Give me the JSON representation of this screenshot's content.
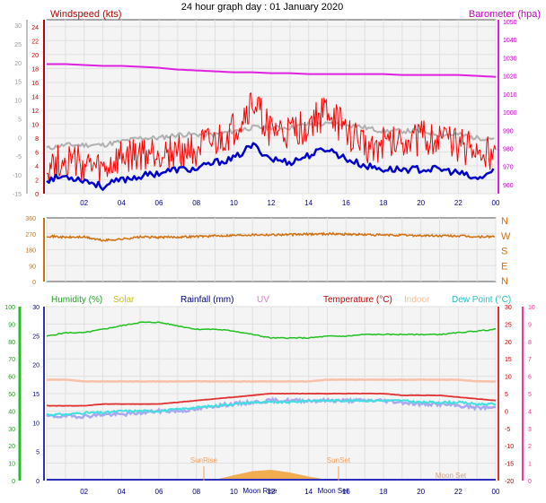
{
  "title": "24 hour graph day : 01 January 2020",
  "x_ticks": [
    "02",
    "04",
    "06",
    "08",
    "10",
    "12",
    "14",
    "16",
    "18",
    "20",
    "22",
    "00"
  ],
  "colors": {
    "wind_avg": "#0000cc",
    "wind_gust": "#ff0000",
    "wind_max": "#b0b0b0",
    "barometer": "#e020e0",
    "direction": "#d07010",
    "humidity": "#20c020",
    "solar": "#f0a030",
    "temperature": "#e03030",
    "indoor": "#f8c0a8",
    "dewpoint": "#40e0e0",
    "rain": "#3030c0",
    "uv_axis": "#ff3399",
    "axis": "#404040",
    "grid": "#e0e0e0"
  },
  "chart_data": [
    {
      "type": "line",
      "panel": "wind-barometer",
      "left_label": "Windspeed (kts)",
      "right_label": "Barometer (hpa)",
      "left_ticks": [
        "24",
        "22",
        "20",
        "18",
        "16",
        "14",
        "12",
        "10",
        "8",
        "6",
        "4",
        "2",
        "0"
      ],
      "right_ticks": [
        "1050",
        "1040",
        "1030",
        "1020",
        "1010",
        "1000",
        "990",
        "980",
        "970",
        "960"
      ],
      "outer_left_ticks": [
        "30",
        "25",
        "20",
        "15",
        "10",
        "5",
        "0",
        "-5",
        "-10",
        "-15"
      ],
      "ylim_left": [
        0,
        25
      ],
      "ylim_right": [
        955,
        1051
      ],
      "x": [
        0,
        1,
        2,
        3,
        4,
        5,
        6,
        7,
        8,
        9,
        10,
        11,
        12,
        13,
        14,
        15,
        16,
        17,
        18,
        19,
        20,
        21,
        22,
        23,
        24
      ],
      "series": [
        {
          "name": "Barometer (hpa)",
          "axis": "right",
          "color_key": "barometer",
          "values": [
            1026.5,
            1026.5,
            1026,
            1025.5,
            1025.5,
            1025,
            1024.5,
            1023.5,
            1023,
            1022.5,
            1022,
            1022,
            1021.5,
            1021.5,
            1021,
            1021,
            1021,
            1021,
            1021,
            1020.5,
            1020.5,
            1020.5,
            1020.5,
            1020,
            1019.5
          ]
        },
        {
          "name": "",
          "axis": "left",
          "color_key": "wind_max",
          "values": [
            6.5,
            7,
            7,
            7,
            7.5,
            8,
            8,
            8.5,
            8.5,
            8.5,
            9,
            9.5,
            9.5,
            9.5,
            10,
            10,
            10,
            9.5,
            9,
            9,
            9,
            8.5,
            8.5,
            8,
            8
          ]
        },
        {
          "name": "",
          "axis": "left",
          "color_key": "wind_gust",
          "values": [
            4,
            5,
            4,
            3,
            5,
            5.5,
            6,
            6,
            6.5,
            7,
            9,
            13,
            9,
            8.5,
            10,
            12,
            9,
            7,
            7,
            8,
            8,
            8,
            7,
            6,
            5.5
          ]
        },
        {
          "name": "",
          "axis": "left",
          "color_key": "wind_avg",
          "values": [
            2,
            2.5,
            2,
            1,
            2,
            2.5,
            3,
            3.5,
            3.5,
            4.5,
            5,
            7,
            5,
            4.5,
            5.5,
            6.5,
            5,
            4,
            3.5,
            3.5,
            3.5,
            3.5,
            3,
            2,
            3.5
          ]
        }
      ]
    },
    {
      "type": "scatter",
      "panel": "wind-direction",
      "left_ticks": [
        "360",
        "270",
        "180",
        "90",
        "0"
      ],
      "right_ticks": [
        "N",
        "W",
        "S",
        "E",
        "N"
      ],
      "ylim": [
        0,
        360
      ],
      "x": [
        0,
        1,
        2,
        3,
        4,
        5,
        6,
        7,
        8,
        9,
        10,
        11,
        12,
        13,
        14,
        15,
        16,
        17,
        18,
        19,
        20,
        21,
        22,
        23,
        24
      ],
      "series": [
        {
          "name": "",
          "color_key": "direction",
          "values": [
            258,
            250,
            252,
            232,
            240,
            252,
            250,
            252,
            255,
            258,
            262,
            265,
            265,
            265,
            268,
            270,
            268,
            265,
            262,
            262,
            260,
            258,
            258,
            252,
            255
          ]
        }
      ]
    },
    {
      "type": "line",
      "panel": "weather",
      "legend": [
        "Humidity (%)",
        "Solar",
        "Rainfall (mm)",
        "UV",
        "Temperature (°C)",
        "Indoor",
        "Dew Point (°C)"
      ],
      "humidity_ticks": [
        "100",
        "90",
        "80",
        "70",
        "60",
        "50",
        "40",
        "30",
        "20",
        "10",
        "0"
      ],
      "rain_ticks": [
        "30",
        "25",
        "20",
        "15",
        "10",
        "5",
        "0"
      ],
      "temp_ticks": [
        "30",
        "25",
        "20",
        "15",
        "10",
        "5",
        "0",
        "-5",
        "-10",
        "-15",
        "-20"
      ],
      "uv_ticks": [
        "10",
        "9",
        "8",
        "7",
        "6",
        "5",
        "4",
        "3",
        "2",
        "1",
        "0"
      ],
      "ylim_humidity": [
        0,
        100
      ],
      "ylim_temperature": [
        -20,
        30
      ],
      "annotations": [
        "SunRise",
        "SunSet",
        "Moon Rise",
        "Moon Set",
        "Moon Set"
      ],
      "x": [
        0,
        1,
        2,
        3,
        4,
        5,
        6,
        7,
        8,
        9,
        10,
        11,
        12,
        13,
        14,
        15,
        16,
        17,
        18,
        19,
        20,
        21,
        22,
        23,
        24
      ],
      "series": [
        {
          "name": "Humidity (%)",
          "axis": "humidity",
          "color_key": "humidity",
          "values": [
            83,
            85,
            85,
            87,
            89,
            91,
            91,
            89,
            87,
            87,
            86,
            84,
            82,
            82,
            82,
            83,
            83,
            84,
            84,
            84,
            84,
            84,
            85,
            86,
            87
          ]
        },
        {
          "name": "Indoor",
          "axis": "temperature",
          "color_key": "indoor",
          "values": [
            9,
            9,
            8.5,
            8.5,
            8.5,
            8.5,
            8.5,
            8.5,
            8.5,
            8.5,
            8.5,
            8.5,
            8.5,
            8.5,
            8.5,
            9,
            9,
            9,
            9,
            9,
            9,
            9,
            9,
            8.5,
            8.5
          ]
        },
        {
          "name": "Temperature (°C)",
          "axis": "temperature",
          "color_key": "temperature",
          "values": [
            1.5,
            1.5,
            1.5,
            2,
            2,
            2,
            2,
            2.5,
            3,
            3.5,
            4,
            4.5,
            5,
            5,
            5,
            5,
            5,
            5,
            5,
            4.5,
            4.5,
            4.5,
            4,
            3.5,
            3
          ]
        },
        {
          "name": "Dew Point (°C)",
          "axis": "temperature",
          "color_key": "dewpoint",
          "values": [
            -1,
            -1,
            -0.5,
            -0.5,
            0,
            0,
            0,
            0.5,
            1,
            1.5,
            2,
            2.5,
            2.5,
            2.5,
            3,
            3,
            3,
            3,
            3,
            3,
            2.5,
            2.5,
            2.5,
            2,
            2
          ]
        },
        {
          "name": "",
          "axis": "temperature",
          "color_key": "indoor_dew",
          "values": [
            -1.5,
            -1.5,
            -1.5,
            -1,
            -1,
            -0.5,
            0,
            0,
            0.5,
            1.5,
            2,
            2.5,
            3,
            3,
            3,
            3,
            3,
            3,
            3,
            2.5,
            2,
            2,
            1.5,
            1,
            1
          ]
        },
        {
          "name": "Solar",
          "axis": "humidity",
          "color_key": "solar",
          "values": [
            0,
            0,
            0,
            0,
            0,
            0,
            0,
            0,
            0,
            0.3,
            2,
            3.5,
            4,
            3,
            1.5,
            0.3,
            0,
            0,
            0,
            0,
            0,
            0,
            0,
            0,
            0
          ]
        }
      ]
    }
  ]
}
